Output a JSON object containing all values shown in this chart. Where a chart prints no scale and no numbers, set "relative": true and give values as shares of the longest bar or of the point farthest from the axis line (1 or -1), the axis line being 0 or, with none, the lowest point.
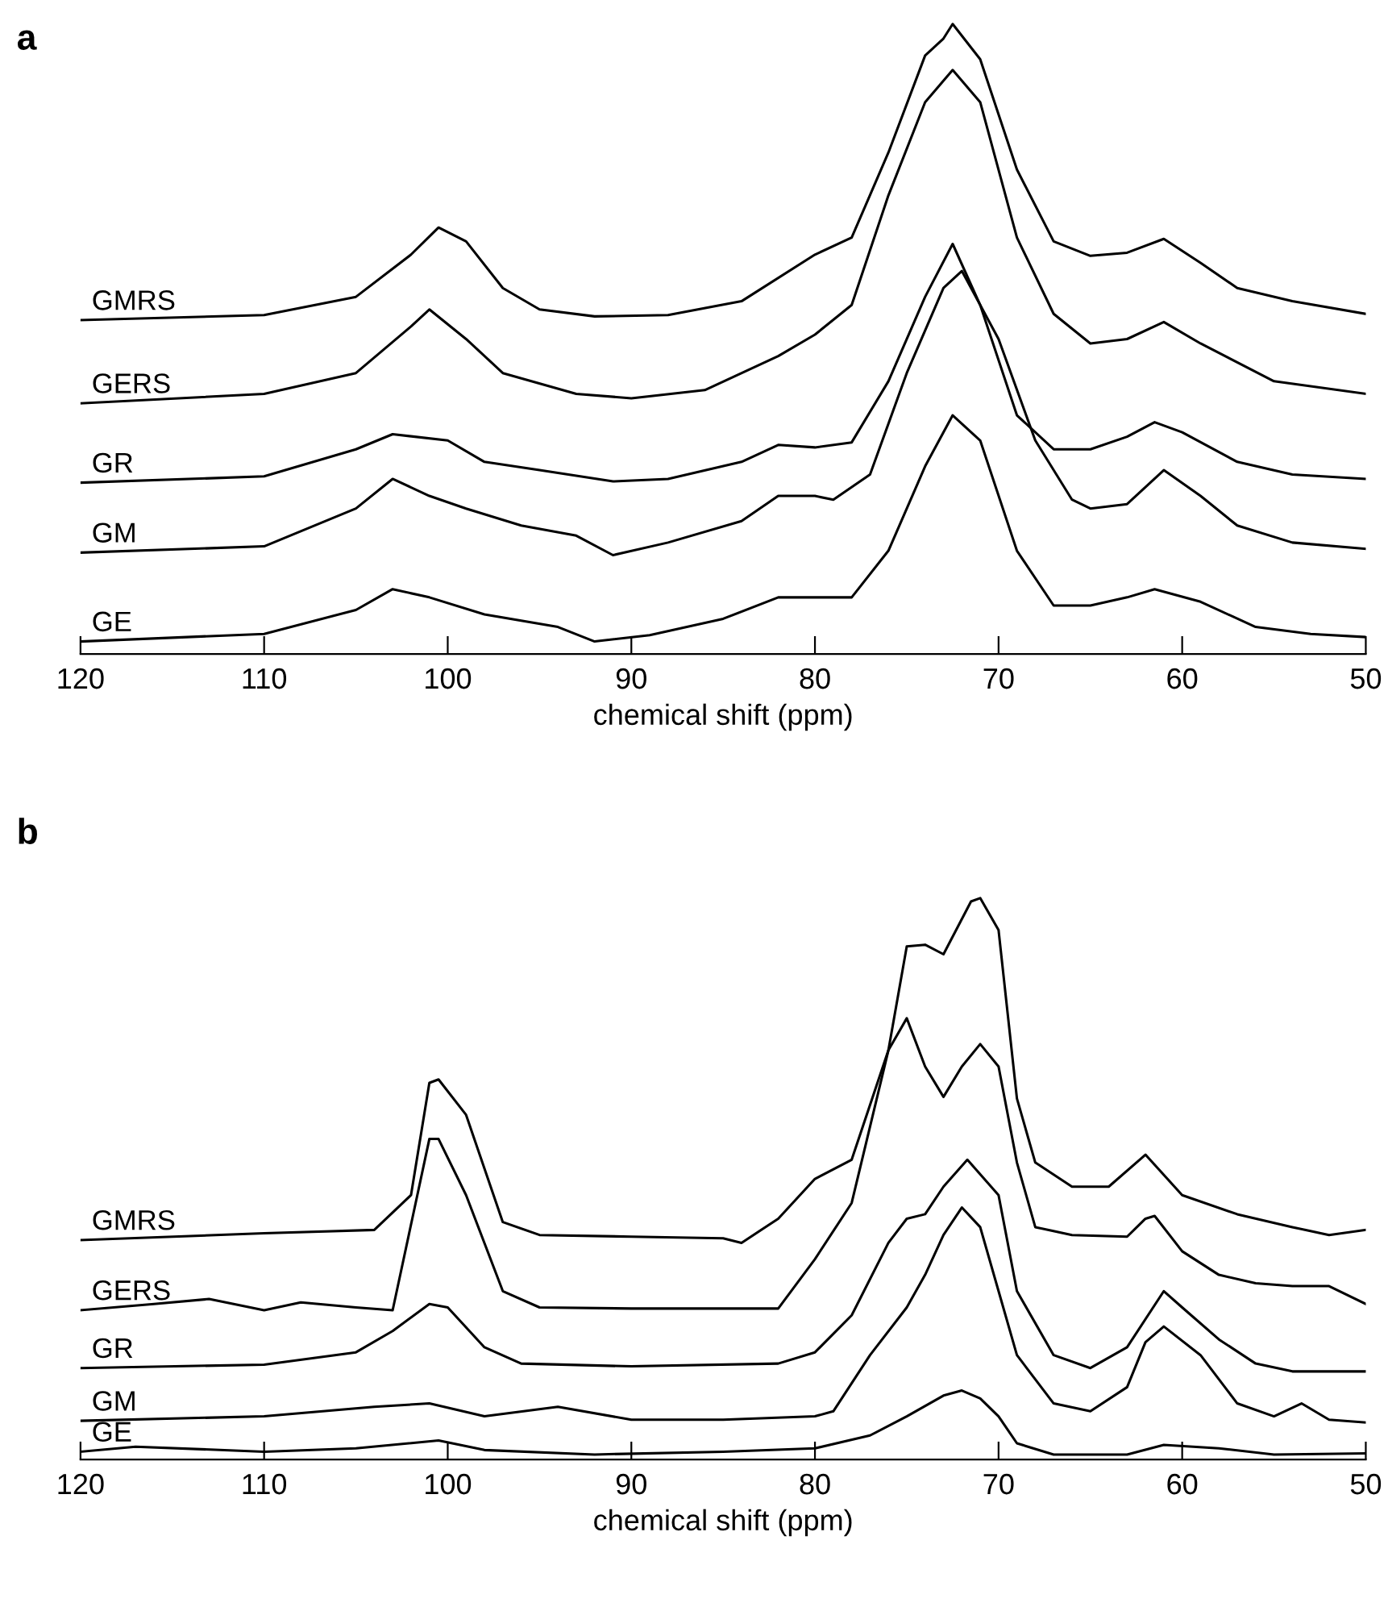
{
  "chart_data": [
    {
      "type": "line",
      "title": "a",
      "xlabel": "chemical shift (ppm)",
      "relative": true,
      "legend": false,
      "xlim": [
        120,
        50
      ],
      "xticks": [
        120,
        110,
        100,
        90,
        80,
        70,
        60,
        50
      ],
      "series": [
        {
          "name": "GMRS",
          "color": "#000000",
          "x": [
            120,
            110,
            105,
            102,
            100.5,
            99,
            97,
            95,
            92,
            88,
            84,
            80,
            78,
            76,
            74,
            73,
            72.5,
            71,
            69,
            67,
            65,
            63,
            61,
            59,
            57,
            54,
            50
          ],
          "values": [
            0.53,
            0.538,
            0.567,
            0.634,
            0.677,
            0.655,
            0.581,
            0.547,
            0.536,
            0.538,
            0.56,
            0.634,
            0.661,
            0.796,
            0.95,
            0.977,
            1.0,
            0.944,
            0.769,
            0.655,
            0.632,
            0.637,
            0.659,
            0.621,
            0.581,
            0.56,
            0.54
          ]
        },
        {
          "name": "GERS",
          "color": "#000000",
          "x": [
            120,
            110,
            105,
            102,
            101,
            99,
            97,
            93,
            90,
            86,
            82,
            80,
            78,
            76,
            74,
            72.5,
            71,
            69,
            67,
            65,
            63,
            61,
            59,
            55,
            50
          ],
          "values": [
            0.398,
            0.413,
            0.446,
            0.52,
            0.547,
            0.5,
            0.446,
            0.413,
            0.406,
            0.419,
            0.473,
            0.507,
            0.554,
            0.728,
            0.876,
            0.927,
            0.876,
            0.661,
            0.54,
            0.493,
            0.5,
            0.527,
            0.493,
            0.433,
            0.413
          ]
        },
        {
          "name": "GR",
          "color": "#000000",
          "x": [
            120,
            110,
            105,
            103,
            100,
            98,
            95,
            91,
            88,
            84,
            82,
            80,
            78,
            76,
            74,
            72.5,
            71,
            69,
            67,
            65,
            63,
            61.5,
            60,
            57,
            54,
            50
          ],
          "values": [
            0.272,
            0.282,
            0.325,
            0.349,
            0.339,
            0.305,
            0.292,
            0.274,
            0.278,
            0.305,
            0.332,
            0.328,
            0.336,
            0.433,
            0.567,
            0.651,
            0.554,
            0.379,
            0.325,
            0.325,
            0.345,
            0.368,
            0.352,
            0.305,
            0.285,
            0.278
          ]
        },
        {
          "name": "GM",
          "color": "#000000",
          "x": [
            120,
            110,
            105,
            103,
            101,
            99,
            96,
            93,
            91,
            88,
            84,
            82,
            80,
            79,
            77,
            75,
            73,
            72,
            70,
            68,
            66,
            65,
            63,
            61,
            59,
            57,
            54,
            50
          ],
          "values": [
            0.161,
            0.171,
            0.231,
            0.278,
            0.251,
            0.231,
            0.204,
            0.188,
            0.157,
            0.177,
            0.211,
            0.251,
            0.251,
            0.245,
            0.285,
            0.446,
            0.581,
            0.608,
            0.5,
            0.339,
            0.245,
            0.231,
            0.238,
            0.292,
            0.251,
            0.204,
            0.177,
            0.167
          ]
        },
        {
          "name": "GE",
          "color": "#000000",
          "x": [
            120,
            110,
            105,
            103,
            101,
            98,
            94,
            92,
            89,
            85,
            82,
            80,
            78,
            76,
            74,
            72.5,
            71,
            69,
            67,
            65,
            63,
            61.5,
            59,
            56,
            53,
            50
          ],
          "values": [
            0.02,
            0.032,
            0.07,
            0.103,
            0.09,
            0.063,
            0.043,
            0.02,
            0.03,
            0.056,
            0.09,
            0.09,
            0.09,
            0.164,
            0.298,
            0.379,
            0.339,
            0.164,
            0.077,
            0.077,
            0.09,
            0.103,
            0.083,
            0.043,
            0.032,
            0.027
          ]
        }
      ]
    },
    {
      "type": "line",
      "title": "b",
      "xlabel": "chemical shift (ppm)",
      "relative": true,
      "legend": false,
      "xlim": [
        120,
        50
      ],
      "xticks": [
        120,
        110,
        100,
        90,
        80,
        70,
        60,
        50
      ],
      "series": [
        {
          "name": "GMRS",
          "color": "#000000",
          "x": [
            120,
            110,
            104,
            102,
            101,
            100.5,
            99,
            97,
            95,
            90,
            85,
            84,
            82,
            80,
            78,
            76,
            75,
            74,
            73,
            71.5,
            71,
            70,
            69,
            68,
            66,
            64,
            62,
            60,
            57,
            54,
            52,
            50
          ],
          "values": [
            0.391,
            0.403,
            0.409,
            0.471,
            0.671,
            0.677,
            0.614,
            0.423,
            0.4,
            0.397,
            0.394,
            0.386,
            0.429,
            0.5,
            0.534,
            0.729,
            0.914,
            0.917,
            0.9,
            0.994,
            1.0,
            0.943,
            0.643,
            0.529,
            0.486,
            0.486,
            0.543,
            0.471,
            0.437,
            0.414,
            0.4,
            0.409
          ]
        },
        {
          "name": "GERS",
          "color": "#000000",
          "x": [
            120,
            116,
            113,
            110,
            108,
            105,
            103,
            101,
            100.5,
            99,
            97,
            95,
            90,
            85,
            82,
            80,
            78,
            76,
            75,
            74,
            73,
            72,
            71,
            70,
            69,
            68,
            66,
            63,
            62,
            61.5,
            60,
            58,
            56,
            54,
            52,
            50
          ],
          "values": [
            0.266,
            0.277,
            0.286,
            0.266,
            0.28,
            0.271,
            0.266,
            0.571,
            0.571,
            0.471,
            0.3,
            0.271,
            0.269,
            0.269,
            0.269,
            0.357,
            0.457,
            0.729,
            0.786,
            0.7,
            0.646,
            0.7,
            0.74,
            0.7,
            0.529,
            0.414,
            0.4,
            0.397,
            0.429,
            0.434,
            0.371,
            0.329,
            0.314,
            0.309,
            0.309,
            0.277
          ]
        },
        {
          "name": "GR",
          "color": "#000000",
          "x": [
            120,
            110,
            105,
            103,
            101,
            100,
            98,
            96,
            90,
            82,
            80,
            78,
            76,
            75,
            74,
            73,
            71.7,
            70,
            69,
            67,
            65,
            63,
            61,
            60,
            58,
            56,
            54,
            50
          ],
          "values": [
            0.163,
            0.169,
            0.191,
            0.229,
            0.277,
            0.271,
            0.2,
            0.171,
            0.166,
            0.171,
            0.191,
            0.257,
            0.386,
            0.429,
            0.437,
            0.486,
            0.534,
            0.471,
            0.3,
            0.186,
            0.163,
            0.2,
            0.3,
            0.271,
            0.214,
            0.171,
            0.157,
            0.157
          ]
        },
        {
          "name": "GM",
          "color": "#000000",
          "x": [
            120,
            110,
            104,
            101,
            98,
            94,
            90,
            85,
            80,
            79,
            77,
            75,
            74,
            73,
            72,
            71,
            70,
            69,
            67,
            65,
            63,
            62,
            61,
            59,
            57,
            55,
            53.5,
            52,
            50
          ],
          "values": [
            0.069,
            0.077,
            0.094,
            0.1,
            0.077,
            0.094,
            0.071,
            0.071,
            0.077,
            0.086,
            0.186,
            0.271,
            0.329,
            0.4,
            0.449,
            0.414,
            0.3,
            0.186,
            0.1,
            0.086,
            0.129,
            0.209,
            0.237,
            0.186,
            0.1,
            0.077,
            0.1,
            0.071,
            0.066
          ]
        },
        {
          "name": "GE",
          "color": "#000000",
          "x": [
            120,
            117,
            110,
            105,
            100.5,
            98,
            92,
            85,
            80,
            77,
            75,
            73,
            72,
            71,
            70,
            69,
            67,
            63,
            61,
            58,
            55,
            50
          ],
          "values": [
            0.014,
            0.023,
            0.014,
            0.02,
            0.034,
            0.017,
            0.009,
            0.014,
            0.02,
            0.043,
            0.077,
            0.114,
            0.123,
            0.109,
            0.077,
            0.029,
            0.009,
            0.009,
            0.026,
            0.02,
            0.009,
            0.011
          ]
        }
      ]
    }
  ]
}
